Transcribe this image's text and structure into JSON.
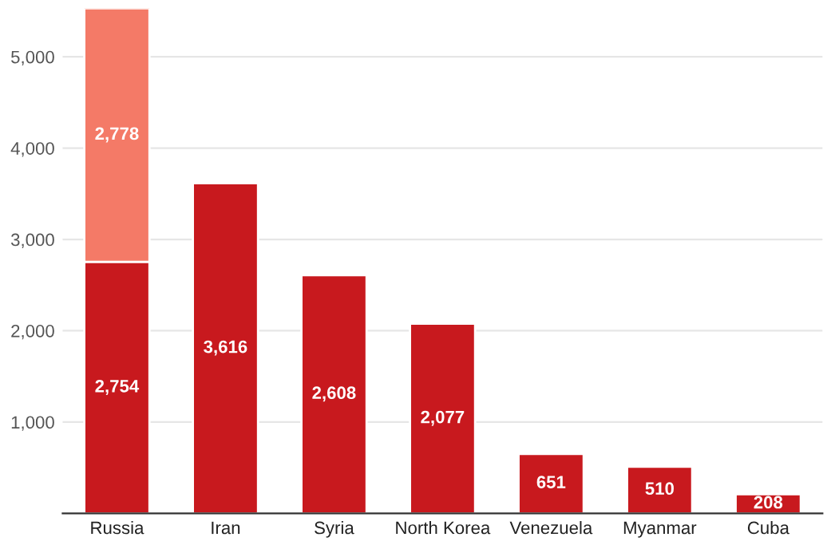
{
  "chart_data": {
    "type": "bar",
    "stacked": true,
    "categories": [
      "Russia",
      "Iran",
      "Syria",
      "North Korea",
      "Venezuela",
      "Myanmar",
      "Cuba"
    ],
    "series": [
      {
        "color": "#c8191e",
        "values": [
          2754,
          3616,
          2608,
          2077,
          651,
          510,
          208
        ],
        "value_labels": [
          "2,754",
          "3,616",
          "2,608",
          "2,077",
          "651",
          "510",
          "208"
        ]
      },
      {
        "color": "#f47a67",
        "values": [
          2778,
          null,
          null,
          null,
          null,
          null,
          null
        ],
        "value_labels": [
          "2,778",
          null,
          null,
          null,
          null,
          null,
          null
        ]
      }
    ],
    "ylim": [
      0,
      5532
    ],
    "yticks": [
      {
        "value": 1000,
        "label": "1,000"
      },
      {
        "value": 2000,
        "label": "2,000"
      },
      {
        "value": 3000,
        "label": "3,000"
      },
      {
        "value": 4000,
        "label": "4,000"
      },
      {
        "value": 5000,
        "label": "5,000"
      }
    ],
    "grid": "y"
  }
}
